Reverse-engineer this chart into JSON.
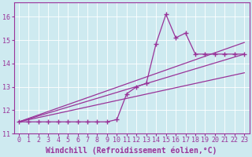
{
  "xlabel": "Windchill (Refroidissement éolien,°C)",
  "background_color": "#ceeaf0",
  "line_color": "#993399",
  "grid_color": "#ffffff",
  "xlim": [
    -0.5,
    23.5
  ],
  "ylim": [
    11.0,
    16.6
  ],
  "yticks": [
    11,
    12,
    13,
    14,
    15,
    16
  ],
  "xticks": [
    0,
    1,
    2,
    3,
    4,
    5,
    6,
    7,
    8,
    9,
    10,
    11,
    12,
    13,
    14,
    15,
    16,
    17,
    18,
    19,
    20,
    21,
    22,
    23
  ],
  "series1_x": [
    0,
    1,
    2,
    3,
    4,
    5,
    6,
    7,
    8,
    9,
    10,
    11,
    12,
    13,
    14,
    15,
    16,
    17,
    18,
    19,
    20,
    21,
    22,
    23
  ],
  "series1_y": [
    11.5,
    11.5,
    11.5,
    11.5,
    11.5,
    11.5,
    11.5,
    11.5,
    11.5,
    11.5,
    11.6,
    12.7,
    13.0,
    13.15,
    14.85,
    16.1,
    15.1,
    15.3,
    14.4,
    14.4,
    14.4,
    14.4,
    14.4,
    14.4
  ],
  "line2_x0": 0,
  "line2_y0": 11.5,
  "line2_x1": 23,
  "line2_y1": 14.9,
  "line3_x0": 0,
  "line3_y0": 11.5,
  "line3_x1": 23,
  "line3_y1": 14.4,
  "line4_x0": 0,
  "line4_y0": 11.5,
  "line4_x1": 23,
  "line4_y1": 13.6,
  "marker": "+",
  "markersize": 5,
  "linewidth": 0.9,
  "xlabel_fontsize": 7,
  "tick_fontsize": 6,
  "tick_color": "#993399",
  "spine_color": "#993399"
}
